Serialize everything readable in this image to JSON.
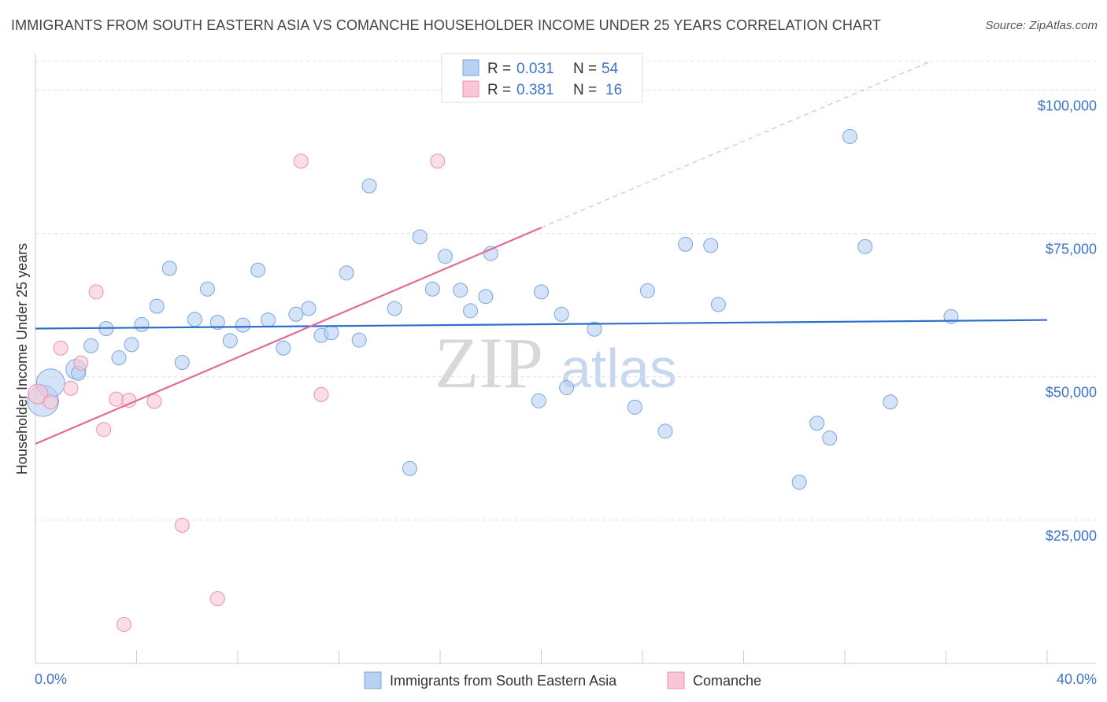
{
  "title": "IMMIGRANTS FROM SOUTH EASTERN ASIA VS COMANCHE HOUSEHOLDER INCOME UNDER 25 YEARS CORRELATION CHART",
  "source": "Source: ZipAtlas.com",
  "watermark": {
    "zip": "ZIP",
    "atlas": "atlas"
  },
  "colors": {
    "blue_fill": "#b8d1f2",
    "blue_stroke": "#7aa5dd",
    "blue_line": "#2b6fcc",
    "pink_fill": "#f8c6d5",
    "pink_stroke": "#ee8fae",
    "pink_line": "#e36a93",
    "axis_text": "#3d74c6",
    "grid": "#dddddd"
  },
  "legend": {
    "rows": [
      {
        "r_label": "R = ",
        "r_value": "0.031",
        "n_label": "N = ",
        "n_value": "54"
      },
      {
        "r_label": "R = ",
        "r_value": "0.381",
        "n_label": "N = ",
        "n_value": "16"
      }
    ]
  },
  "chart_data": {
    "type": "scatter",
    "title": "IMMIGRANTS FROM SOUTH EASTERN ASIA VS COMANCHE HOUSEHOLDER INCOME UNDER 25 YEARS CORRELATION CHART",
    "xlabel": "",
    "ylabel": "Householder Income Under 25 years",
    "xlim": [
      0,
      40
    ],
    "ylim": [
      0,
      105000
    ],
    "x_tick_labels": [
      "0.0%",
      "40.0%"
    ],
    "y_ticks": [
      {
        "value": 25000,
        "label": "$25,000"
      },
      {
        "value": 50000,
        "label": "$50,000"
      },
      {
        "value": 75000,
        "label": "$75,000"
      },
      {
        "value": 100000,
        "label": "$100,000"
      }
    ],
    "grid": true,
    "legend_position": "top-center",
    "series": [
      {
        "name": "Immigrants from South Eastern Asia",
        "color": "blue",
        "r": 0.031,
        "n": 54,
        "trend": {
          "x0": 0,
          "y0": 58400,
          "x1": 40,
          "y1": 59900,
          "dashed_to": null
        },
        "points": [
          [
            0.3,
            45800,
            2.2
          ],
          [
            0.6,
            48900,
            2.0
          ],
          [
            1.6,
            51300,
            1.4
          ],
          [
            1.7,
            50600,
            1.0
          ],
          [
            2.2,
            55400,
            1
          ],
          [
            2.8,
            58400,
            1
          ],
          [
            3.3,
            53300,
            1
          ],
          [
            3.8,
            55600,
            1
          ],
          [
            4.2,
            59100,
            1
          ],
          [
            4.8,
            62300,
            1
          ],
          [
            5.3,
            68900,
            1
          ],
          [
            5.8,
            52500,
            1
          ],
          [
            6.3,
            60000,
            1
          ],
          [
            6.8,
            65300,
            1
          ],
          [
            7.2,
            59500,
            1
          ],
          [
            7.7,
            56300,
            1
          ],
          [
            8.2,
            59000,
            1
          ],
          [
            8.8,
            68600,
            1
          ],
          [
            9.2,
            59900,
            1
          ],
          [
            9.8,
            55000,
            1
          ],
          [
            10.3,
            60900,
            1
          ],
          [
            10.8,
            61900,
            1
          ],
          [
            11.3,
            57200,
            1
          ],
          [
            11.7,
            57700,
            1
          ],
          [
            12.3,
            68100,
            1
          ],
          [
            12.8,
            56400,
            1
          ],
          [
            13.2,
            83300,
            1
          ],
          [
            14.2,
            61900,
            1
          ],
          [
            14.8,
            34000,
            1
          ],
          [
            15.2,
            74400,
            1
          ],
          [
            15.7,
            65300,
            1
          ],
          [
            16.2,
            71000,
            1
          ],
          [
            16.8,
            65100,
            1
          ],
          [
            17.2,
            61500,
            1
          ],
          [
            17.8,
            64000,
            1
          ],
          [
            18.0,
            71500,
            1
          ],
          [
            19.9,
            45800,
            1
          ],
          [
            20.0,
            64800,
            1
          ],
          [
            20.8,
            60900,
            1
          ],
          [
            21.0,
            48100,
            1
          ],
          [
            22.1,
            58300,
            1
          ],
          [
            23.7,
            44700,
            1
          ],
          [
            24.2,
            65000,
            1
          ],
          [
            24.9,
            40500,
            1
          ],
          [
            25.7,
            73100,
            1
          ],
          [
            26.7,
            72900,
            1
          ],
          [
            27.0,
            62600,
            1
          ],
          [
            30.2,
            31600,
            1
          ],
          [
            30.9,
            41900,
            1
          ],
          [
            31.4,
            39300,
            1
          ],
          [
            32.2,
            91900,
            1
          ],
          [
            32.8,
            72700,
            1
          ],
          [
            33.8,
            45600,
            1
          ],
          [
            36.2,
            60500,
            1
          ]
        ]
      },
      {
        "name": "Comanche",
        "color": "pink",
        "r": 0.381,
        "n": 16,
        "trend": {
          "x0": 0,
          "y0": 38300,
          "x1": 20,
          "y1": 76000,
          "dashed_to": {
            "x": 40,
            "y": 113700
          }
        },
        "points": [
          [
            0.1,
            47000,
            1.4
          ],
          [
            0.6,
            45600,
            1
          ],
          [
            1.0,
            55000,
            1
          ],
          [
            1.4,
            48000,
            1
          ],
          [
            1.8,
            52400,
            1
          ],
          [
            2.4,
            64800,
            1
          ],
          [
            2.7,
            40800,
            1
          ],
          [
            3.2,
            46100,
            1
          ],
          [
            3.7,
            45900,
            1
          ],
          [
            3.5,
            6800,
            1
          ],
          [
            4.7,
            45700,
            1
          ],
          [
            5.8,
            24100,
            1
          ],
          [
            7.2,
            11300,
            1
          ],
          [
            10.5,
            87600,
            1
          ],
          [
            11.3,
            46900,
            1
          ],
          [
            15.9,
            87600,
            1
          ]
        ]
      }
    ]
  },
  "bottom_legend": {
    "items": [
      {
        "label": "Immigrants from South Eastern Asia"
      },
      {
        "label": "Comanche"
      }
    ]
  }
}
